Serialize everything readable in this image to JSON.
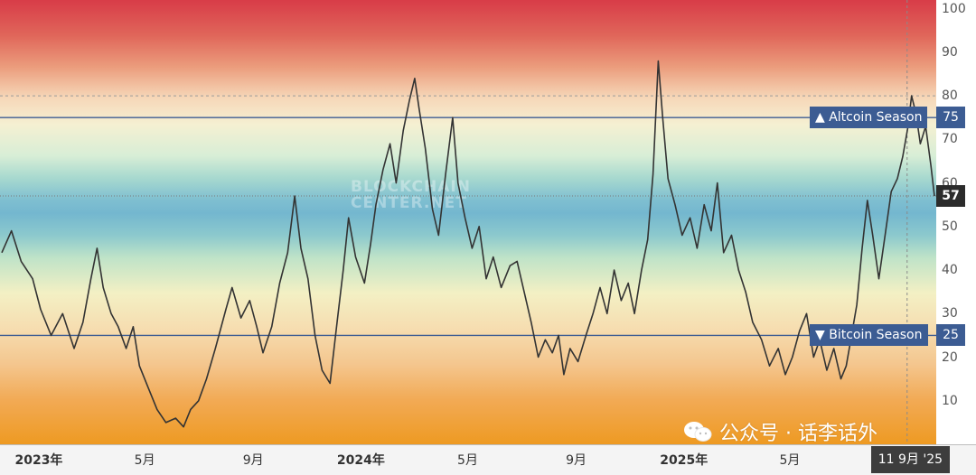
{
  "chart_data": {
    "type": "line",
    "y_axis_side": "right",
    "ylim": [
      0,
      102
    ],
    "yticks": [
      10,
      20,
      30,
      40,
      50,
      60,
      70,
      80,
      90,
      100
    ],
    "xticks": [
      {
        "label": "2023年",
        "date": "2023-01-01",
        "bold": true
      },
      {
        "label": "5月",
        "date": "2023-05-01",
        "bold": false
      },
      {
        "label": "9月",
        "date": "2023-09-01",
        "bold": false
      },
      {
        "label": "2024年",
        "date": "2024-01-01",
        "bold": true
      },
      {
        "label": "5月",
        "date": "2024-05-01",
        "bold": false
      },
      {
        "label": "9月",
        "date": "2024-09-01",
        "bold": false
      },
      {
        "label": "2025年",
        "date": "2025-01-01",
        "bold": true
      },
      {
        "label": "5月",
        "date": "2025-05-01",
        "bold": false
      }
    ],
    "x_range": [
      "2022-11-18",
      "2025-10-14"
    ],
    "series": [
      {
        "color": "#333333",
        "points": [
          [
            "2022-11-20",
            44
          ],
          [
            "2022-12-01",
            49
          ],
          [
            "2022-12-12",
            42
          ],
          [
            "2022-12-25",
            38
          ],
          [
            "2023-01-03",
            31
          ],
          [
            "2023-01-15",
            25
          ],
          [
            "2023-01-28",
            30
          ],
          [
            "2023-02-10",
            22
          ],
          [
            "2023-02-20",
            28
          ],
          [
            "2023-03-01",
            38
          ],
          [
            "2023-03-08",
            45
          ],
          [
            "2023-03-15",
            36
          ],
          [
            "2023-03-24",
            30
          ],
          [
            "2023-04-01",
            27
          ],
          [
            "2023-04-10",
            22
          ],
          [
            "2023-04-18",
            27
          ],
          [
            "2023-04-25",
            18
          ],
          [
            "2023-05-05",
            13
          ],
          [
            "2023-05-15",
            8
          ],
          [
            "2023-05-25",
            5
          ],
          [
            "2023-06-05",
            6
          ],
          [
            "2023-06-14",
            4
          ],
          [
            "2023-06-22",
            8
          ],
          [
            "2023-07-01",
            10
          ],
          [
            "2023-07-10",
            15
          ],
          [
            "2023-07-20",
            22
          ],
          [
            "2023-08-01",
            31
          ],
          [
            "2023-08-08",
            36
          ],
          [
            "2023-08-18",
            29
          ],
          [
            "2023-08-28",
            33
          ],
          [
            "2023-09-05",
            27
          ],
          [
            "2023-09-12",
            21
          ],
          [
            "2023-09-22",
            27
          ],
          [
            "2023-10-01",
            37
          ],
          [
            "2023-10-10",
            44
          ],
          [
            "2023-10-18",
            57
          ],
          [
            "2023-10-25",
            45
          ],
          [
            "2023-11-02",
            38
          ],
          [
            "2023-11-10",
            25
          ],
          [
            "2023-11-18",
            17
          ],
          [
            "2023-11-27",
            14
          ],
          [
            "2023-12-05",
            28
          ],
          [
            "2023-12-12",
            40
          ],
          [
            "2023-12-18",
            52
          ],
          [
            "2023-12-26",
            43
          ],
          [
            "2024-01-05",
            37
          ],
          [
            "2024-01-12",
            46
          ],
          [
            "2024-01-18",
            55
          ],
          [
            "2024-01-26",
            63
          ],
          [
            "2024-02-03",
            69
          ],
          [
            "2024-02-10",
            60
          ],
          [
            "2024-02-18",
            72
          ],
          [
            "2024-02-25",
            79
          ],
          [
            "2024-03-02",
            84
          ],
          [
            "2024-03-07",
            77
          ],
          [
            "2024-03-14",
            68
          ],
          [
            "2024-03-22",
            54
          ],
          [
            "2024-03-29",
            48
          ],
          [
            "2024-04-06",
            62
          ],
          [
            "2024-04-14",
            75
          ],
          [
            "2024-04-20",
            60
          ],
          [
            "2024-04-28",
            52
          ],
          [
            "2024-05-06",
            45
          ],
          [
            "2024-05-14",
            50
          ],
          [
            "2024-05-22",
            38
          ],
          [
            "2024-05-30",
            43
          ],
          [
            "2024-06-08",
            36
          ],
          [
            "2024-06-18",
            41
          ],
          [
            "2024-06-26",
            42
          ],
          [
            "2024-07-04",
            35
          ],
          [
            "2024-07-12",
            28
          ],
          [
            "2024-07-20",
            20
          ],
          [
            "2024-07-28",
            24
          ],
          [
            "2024-08-05",
            21
          ],
          [
            "2024-08-12",
            25
          ],
          [
            "2024-08-18",
            16
          ],
          [
            "2024-08-25",
            22
          ],
          [
            "2024-09-03",
            19
          ],
          [
            "2024-09-12",
            25
          ],
          [
            "2024-09-20",
            30
          ],
          [
            "2024-09-28",
            36
          ],
          [
            "2024-10-06",
            30
          ],
          [
            "2024-10-14",
            40
          ],
          [
            "2024-10-22",
            33
          ],
          [
            "2024-10-30",
            37
          ],
          [
            "2024-11-06",
            30
          ],
          [
            "2024-11-14",
            40
          ],
          [
            "2024-11-21",
            47
          ],
          [
            "2024-11-27",
            62
          ],
          [
            "2024-12-03",
            88
          ],
          [
            "2024-12-08",
            75
          ],
          [
            "2024-12-14",
            61
          ],
          [
            "2024-12-22",
            55
          ],
          [
            "2024-12-30",
            48
          ],
          [
            "2025-01-08",
            52
          ],
          [
            "2025-01-16",
            45
          ],
          [
            "2025-01-24",
            55
          ],
          [
            "2025-02-01",
            49
          ],
          [
            "2025-02-08",
            60
          ],
          [
            "2025-02-15",
            44
          ],
          [
            "2025-02-24",
            48
          ],
          [
            "2025-03-04",
            40
          ],
          [
            "2025-03-12",
            35
          ],
          [
            "2025-03-20",
            28
          ],
          [
            "2025-03-30",
            24
          ],
          [
            "2025-04-08",
            18
          ],
          [
            "2025-04-18",
            22
          ],
          [
            "2025-04-26",
            16
          ],
          [
            "2025-05-04",
            20
          ],
          [
            "2025-05-12",
            26
          ],
          [
            "2025-05-20",
            30
          ],
          [
            "2025-05-28",
            20
          ],
          [
            "2025-06-04",
            24
          ],
          [
            "2025-06-12",
            17
          ],
          [
            "2025-06-20",
            22
          ],
          [
            "2025-06-28",
            15
          ],
          [
            "2025-07-04",
            18
          ],
          [
            "2025-07-10",
            25
          ],
          [
            "2025-07-16",
            32
          ],
          [
            "2025-07-22",
            45
          ],
          [
            "2025-07-28",
            56
          ],
          [
            "2025-08-03",
            48
          ],
          [
            "2025-08-10",
            38
          ],
          [
            "2025-08-17",
            48
          ],
          [
            "2025-08-24",
            58
          ],
          [
            "2025-08-31",
            61
          ],
          [
            "2025-09-06",
            66
          ],
          [
            "2025-09-12",
            73
          ],
          [
            "2025-09-16",
            80
          ],
          [
            "2025-09-21",
            76
          ],
          [
            "2025-09-26",
            69
          ],
          [
            "2025-10-02",
            73
          ],
          [
            "2025-10-08",
            64
          ],
          [
            "2025-10-12",
            57
          ]
        ]
      }
    ],
    "reference_lines": [
      {
        "label": "Altcoin Season",
        "value": 75,
        "marker": "▲"
      },
      {
        "label": "Bitcoin Season",
        "value": 25,
        "marker": "▼"
      }
    ],
    "dashed_line_value": 80,
    "last_value": "57",
    "crosshair_date_label": "11 9月 '25",
    "crosshair_date": "2025-09-11",
    "watermark": [
      "BLOCKCHAIN",
      "CENTER.NET"
    ],
    "grid": false,
    "background": "vertical color gradient: red (top) → cream → teal/blue (middle) → cream → orange (bottom)"
  },
  "overlay": {
    "wechat_label": "公众号 · 话李话外",
    "wechat_icon": "wechat-logo-icon"
  },
  "colors": {
    "line": "#333333",
    "badge": "#3c5c93",
    "last_badge": "#2b2b2b",
    "date_badge": "#3d3d3d"
  }
}
